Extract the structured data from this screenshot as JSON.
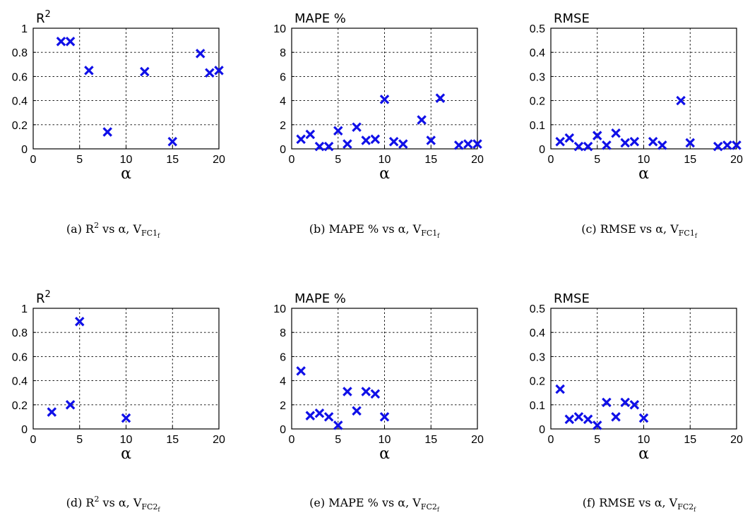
{
  "chart_data": [
    {
      "id": "a",
      "type": "scatter",
      "title": "R²",
      "xlabel": "α",
      "xlim": [
        0,
        20
      ],
      "ylim": [
        0,
        1
      ],
      "grid": true,
      "xticks": [
        "0",
        "5",
        "10",
        "15",
        "20"
      ],
      "yticks": [
        "0",
        "0.2",
        "0.4",
        "0.6",
        "0.8",
        "1"
      ],
      "caption": {
        "text": "(a) R",
        "sup": "2",
        "mid": " vs α, V",
        "sub": "FC1",
        "subsub": "f"
      },
      "color": "#1010e8",
      "points": [
        [
          3,
          0.89
        ],
        [
          4,
          0.89
        ],
        [
          6,
          0.65
        ],
        [
          8,
          0.14
        ],
        [
          12,
          0.64
        ],
        [
          15,
          0.06
        ],
        [
          18,
          0.79
        ],
        [
          19,
          0.63
        ],
        [
          20,
          0.65
        ]
      ]
    },
    {
      "id": "b",
      "type": "scatter",
      "title": "MAPE %",
      "xlabel": "α",
      "xlim": [
        0,
        20
      ],
      "ylim": [
        0,
        10
      ],
      "grid": true,
      "xticks": [
        "0",
        "5",
        "10",
        "15",
        "20"
      ],
      "yticks": [
        "0",
        "2",
        "4",
        "6",
        "8",
        "10"
      ],
      "caption": {
        "text": "(b) MAPE % vs α, V",
        "sup": "",
        "mid": "",
        "sub": "FC1",
        "subsub": "f"
      },
      "color": "#1010e8",
      "points": [
        [
          1,
          0.8
        ],
        [
          2,
          1.2
        ],
        [
          3,
          0.2
        ],
        [
          4,
          0.2
        ],
        [
          5,
          1.5
        ],
        [
          6,
          0.4
        ],
        [
          7,
          1.8
        ],
        [
          8,
          0.7
        ],
        [
          9,
          0.8
        ],
        [
          10,
          4.1
        ],
        [
          11,
          0.6
        ],
        [
          12,
          0.4
        ],
        [
          14,
          2.4
        ],
        [
          15,
          0.7
        ],
        [
          16,
          4.2
        ],
        [
          18,
          0.3
        ],
        [
          19,
          0.4
        ],
        [
          20,
          0.4
        ]
      ]
    },
    {
      "id": "c",
      "type": "scatter",
      "title": "RMSE",
      "xlabel": "α",
      "xlim": [
        0,
        20
      ],
      "ylim": [
        0,
        0.5
      ],
      "grid": true,
      "xticks": [
        "0",
        "5",
        "10",
        "15",
        "20"
      ],
      "yticks": [
        "0",
        "0.1",
        "0.2",
        "0.3",
        "0.4",
        "0.5"
      ],
      "caption": {
        "text": "(c) RMSE vs α, V",
        "sup": "",
        "mid": "",
        "sub": "FC1",
        "subsub": "f"
      },
      "color": "#1010e8",
      "points": [
        [
          1,
          0.03
        ],
        [
          2,
          0.045
        ],
        [
          3,
          0.01
        ],
        [
          4,
          0.01
        ],
        [
          5,
          0.055
        ],
        [
          6,
          0.015
        ],
        [
          7,
          0.065
        ],
        [
          8,
          0.025
        ],
        [
          9,
          0.03
        ],
        [
          11,
          0.03
        ],
        [
          12,
          0.015
        ],
        [
          14,
          0.2
        ],
        [
          15,
          0.025
        ],
        [
          18,
          0.01
        ],
        [
          19,
          0.015
        ],
        [
          20,
          0.015
        ]
      ]
    },
    {
      "id": "d",
      "type": "scatter",
      "title": "R²",
      "xlabel": "α",
      "xlim": [
        0,
        20
      ],
      "ylim": [
        0,
        1
      ],
      "grid": true,
      "xticks": [
        "0",
        "5",
        "10",
        "15",
        "20"
      ],
      "yticks": [
        "0",
        "0.2",
        "0.4",
        "0.6",
        "0.8",
        "1"
      ],
      "caption": {
        "text": "(d) R",
        "sup": "2",
        "mid": " vs α, V",
        "sub": "FC2",
        "subsub": "f"
      },
      "color": "#1010e8",
      "points": [
        [
          2,
          0.14
        ],
        [
          4,
          0.2
        ],
        [
          5,
          0.89
        ],
        [
          10,
          0.09
        ]
      ]
    },
    {
      "id": "e",
      "type": "scatter",
      "title": "MAPE %",
      "xlabel": "α",
      "xlim": [
        0,
        20
      ],
      "ylim": [
        0,
        10
      ],
      "grid": true,
      "xticks": [
        "0",
        "5",
        "10",
        "15",
        "20"
      ],
      "yticks": [
        "0",
        "2",
        "4",
        "6",
        "8",
        "10"
      ],
      "caption": {
        "text": "(e) MAPE % vs α, V",
        "sup": "",
        "mid": "",
        "sub": "FC2",
        "subsub": "f"
      },
      "color": "#1010e8",
      "points": [
        [
          1,
          4.8
        ],
        [
          2,
          1.1
        ],
        [
          3,
          1.3
        ],
        [
          4,
          1.0
        ],
        [
          5,
          0.3
        ],
        [
          6,
          3.1
        ],
        [
          7,
          1.5
        ],
        [
          8,
          3.1
        ],
        [
          9,
          2.9
        ],
        [
          10,
          1.0
        ]
      ]
    },
    {
      "id": "f",
      "type": "scatter",
      "title": "RMSE",
      "xlabel": "α",
      "xlim": [
        0,
        20
      ],
      "ylim": [
        0,
        0.5
      ],
      "grid": true,
      "xticks": [
        "0",
        "5",
        "10",
        "15",
        "20"
      ],
      "yticks": [
        "0",
        "0.1",
        "0.2",
        "0.3",
        "0.4",
        "0.5"
      ],
      "caption": {
        "text": "(f) RMSE vs α, V",
        "sup": "",
        "mid": "",
        "sub": "FC2",
        "subsub": "f"
      },
      "color": "#1010e8",
      "points": [
        [
          1,
          0.165
        ],
        [
          2,
          0.04
        ],
        [
          3,
          0.05
        ],
        [
          4,
          0.04
        ],
        [
          5,
          0.015
        ],
        [
          6,
          0.11
        ],
        [
          7,
          0.05
        ],
        [
          8,
          0.11
        ],
        [
          9,
          0.1
        ],
        [
          10,
          0.045
        ]
      ]
    }
  ]
}
